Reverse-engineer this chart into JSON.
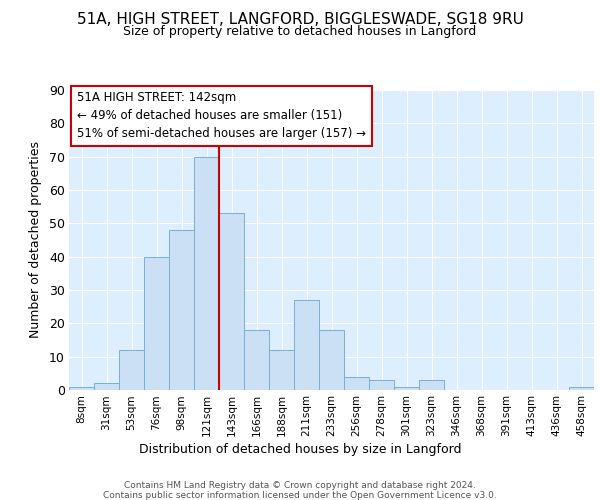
{
  "title1": "51A, HIGH STREET, LANGFORD, BIGGLESWADE, SG18 9RU",
  "title2": "Size of property relative to detached houses in Langford",
  "xlabel": "Distribution of detached houses by size in Langford",
  "ylabel": "Number of detached properties",
  "bar_labels": [
    "8sqm",
    "31sqm",
    "53sqm",
    "76sqm",
    "98sqm",
    "121sqm",
    "143sqm",
    "166sqm",
    "188sqm",
    "211sqm",
    "233sqm",
    "256sqm",
    "278sqm",
    "301sqm",
    "323sqm",
    "346sqm",
    "368sqm",
    "391sqm",
    "413sqm",
    "436sqm",
    "458sqm"
  ],
  "bar_values": [
    1,
    2,
    12,
    40,
    48,
    70,
    53,
    18,
    12,
    27,
    18,
    4,
    3,
    1,
    3,
    0,
    0,
    0,
    0,
    0,
    1
  ],
  "bar_color": "#cce0f5",
  "bar_edge_color": "#7aaed6",
  "vline_color": "#cc0000",
  "vline_x_index": 5.5,
  "annotation_title": "51A HIGH STREET: 142sqm",
  "annotation_line1": "← 49% of detached houses are smaller (151)",
  "annotation_line2": "51% of semi-detached houses are larger (157) →",
  "annotation_box_facecolor": "#ffffff",
  "annotation_box_edgecolor": "#cc0000",
  "ylim": [
    0,
    90
  ],
  "yticks": [
    0,
    10,
    20,
    30,
    40,
    50,
    60,
    70,
    80,
    90
  ],
  "footer_line1": "Contains HM Land Registry data © Crown copyright and database right 2024.",
  "footer_line2": "Contains public sector information licensed under the Open Government Licence v3.0.",
  "fig_bg_color": "#ffffff",
  "plot_bg_color": "#ddeeff",
  "grid_color": "#ffffff"
}
